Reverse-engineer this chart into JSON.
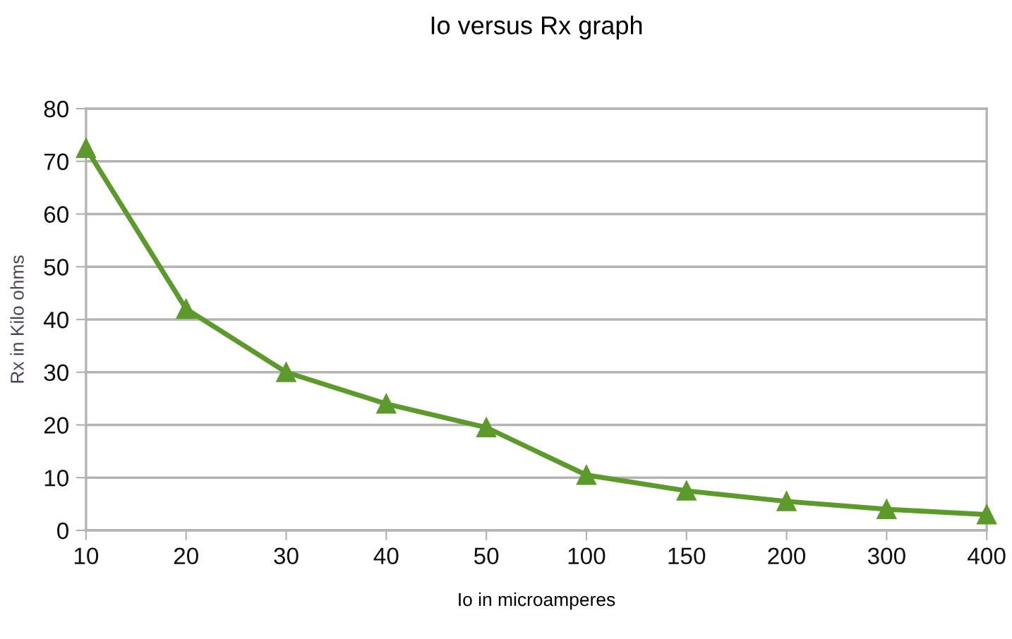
{
  "chart_data": {
    "type": "line",
    "title": "Io versus Rx graph",
    "xlabel": "Io in microamperes",
    "ylabel": "Rx in Kilo ohms",
    "categories": [
      "10",
      "20",
      "30",
      "40",
      "50",
      "100",
      "150",
      "200",
      "300",
      "400"
    ],
    "series": [
      {
        "color": "#5b9a2b",
        "values": [
          72.5,
          42,
          30,
          24,
          19.5,
          10.5,
          7.5,
          5.5,
          4,
          3
        ]
      }
    ],
    "ylim": [
      0,
      80
    ],
    "yticks": [
      0,
      10,
      20,
      30,
      40,
      50,
      60,
      70,
      80
    ],
    "grid": "y",
    "marker": "triangle",
    "line_style": "solid",
    "legend": false
  }
}
